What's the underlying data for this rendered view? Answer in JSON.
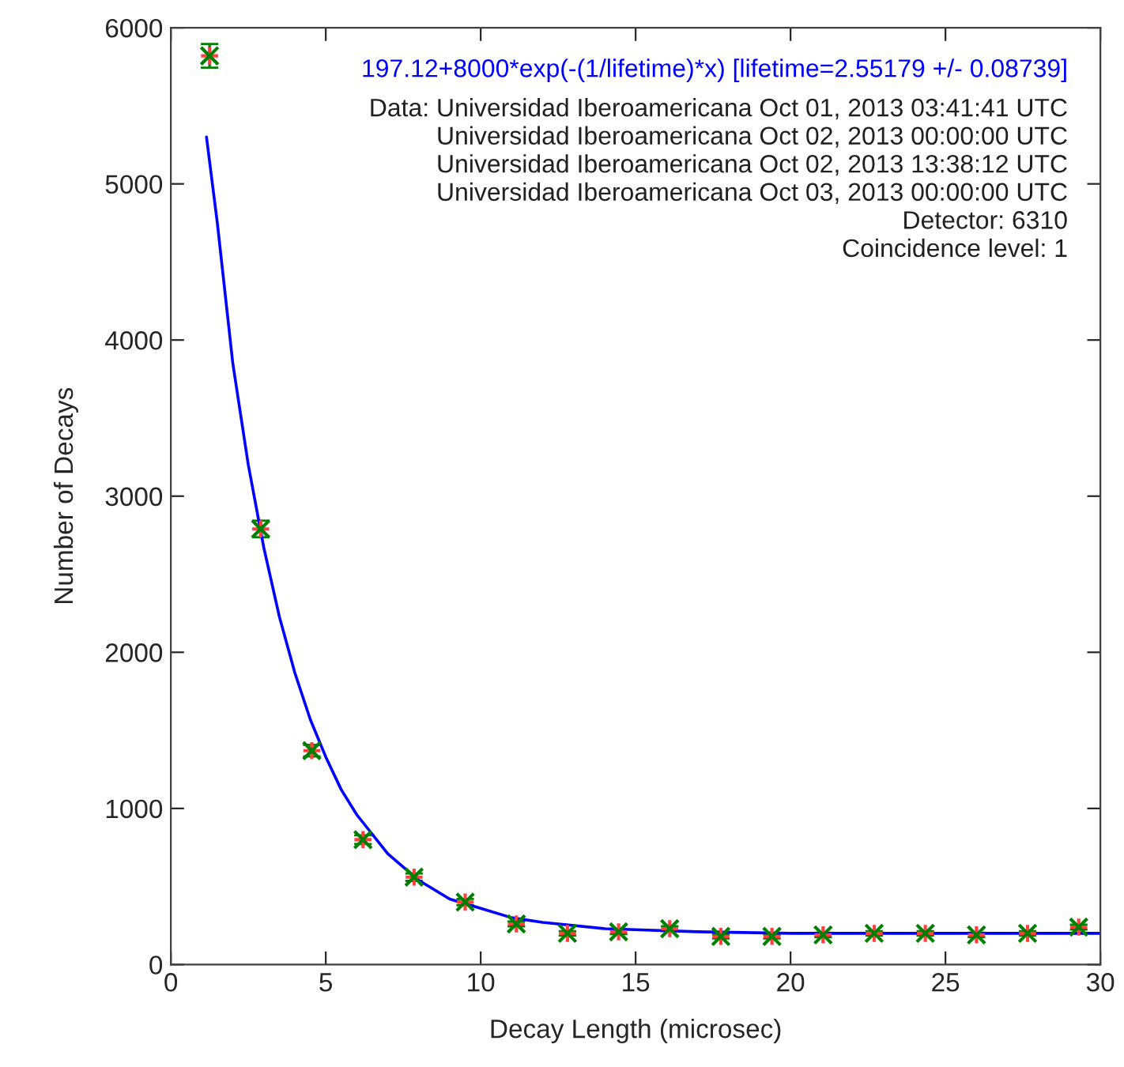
{
  "chart_data": {
    "type": "scatter",
    "xlabel": "Decay Length (microsec)",
    "ylabel": "Number of Decays",
    "annotations": [
      "197.12+8000*exp(-(1/lifetime)*x) [lifetime=2.55179 +/- 0.08739]",
      "Data: Universidad Iberoamericana Oct 01, 2013 03:41:41 UTC\nUniversidad Iberoamericana Oct 02, 2013 00:00:00 UTC\nUniversidad Iberoamericana Oct 02, 2013 13:38:12 UTC\nUniversidad Iberoamericana Oct 03, 2013 00:00:00 UTC\nDetector: 6310\nCoincidence level: 1"
    ],
    "series": [
      {
        "color": "#008000",
        "marker": "cross",
        "x": [
          1.25,
          2.9,
          4.55,
          6.2,
          7.85,
          9.5,
          11.15,
          12.8,
          14.45,
          16.1,
          17.75,
          19.4,
          21.05,
          22.7,
          24.35,
          26.0,
          27.65,
          29.3
        ],
        "values": [
          5820,
          2790,
          1370,
          800,
          560,
          400,
          260,
          200,
          210,
          230,
          180,
          180,
          190,
          200,
          200,
          190,
          200,
          240
        ],
        "errors": [
          76,
          53,
          37,
          28,
          24,
          20,
          16,
          14,
          15,
          15,
          13,
          13,
          14,
          14,
          14,
          14,
          14,
          16
        ]
      },
      {
        "type": "line",
        "color": "#0000ff",
        "x": [
          1.15,
          1.5,
          2,
          2.5,
          3,
          3.5,
          4,
          4.5,
          5,
          5.5,
          6,
          7,
          8,
          9,
          10,
          11,
          12,
          14,
          17,
          20,
          25,
          30
        ],
        "values": [
          5300,
          4750,
          3850,
          3200,
          2670,
          2230,
          1870,
          1570,
          1330,
          1120,
          960,
          710,
          540,
          420,
          360,
          300,
          270,
          230,
          210,
          200,
          200,
          200
        ]
      }
    ],
    "xlim": [
      0,
      30
    ],
    "ylim": [
      0,
      6000
    ],
    "xticks": [
      0,
      5,
      10,
      15,
      20,
      25,
      30
    ],
    "yticks": [
      0,
      1000,
      2000,
      3000,
      4000,
      5000,
      6000
    ],
    "grid": false,
    "legend": false
  }
}
